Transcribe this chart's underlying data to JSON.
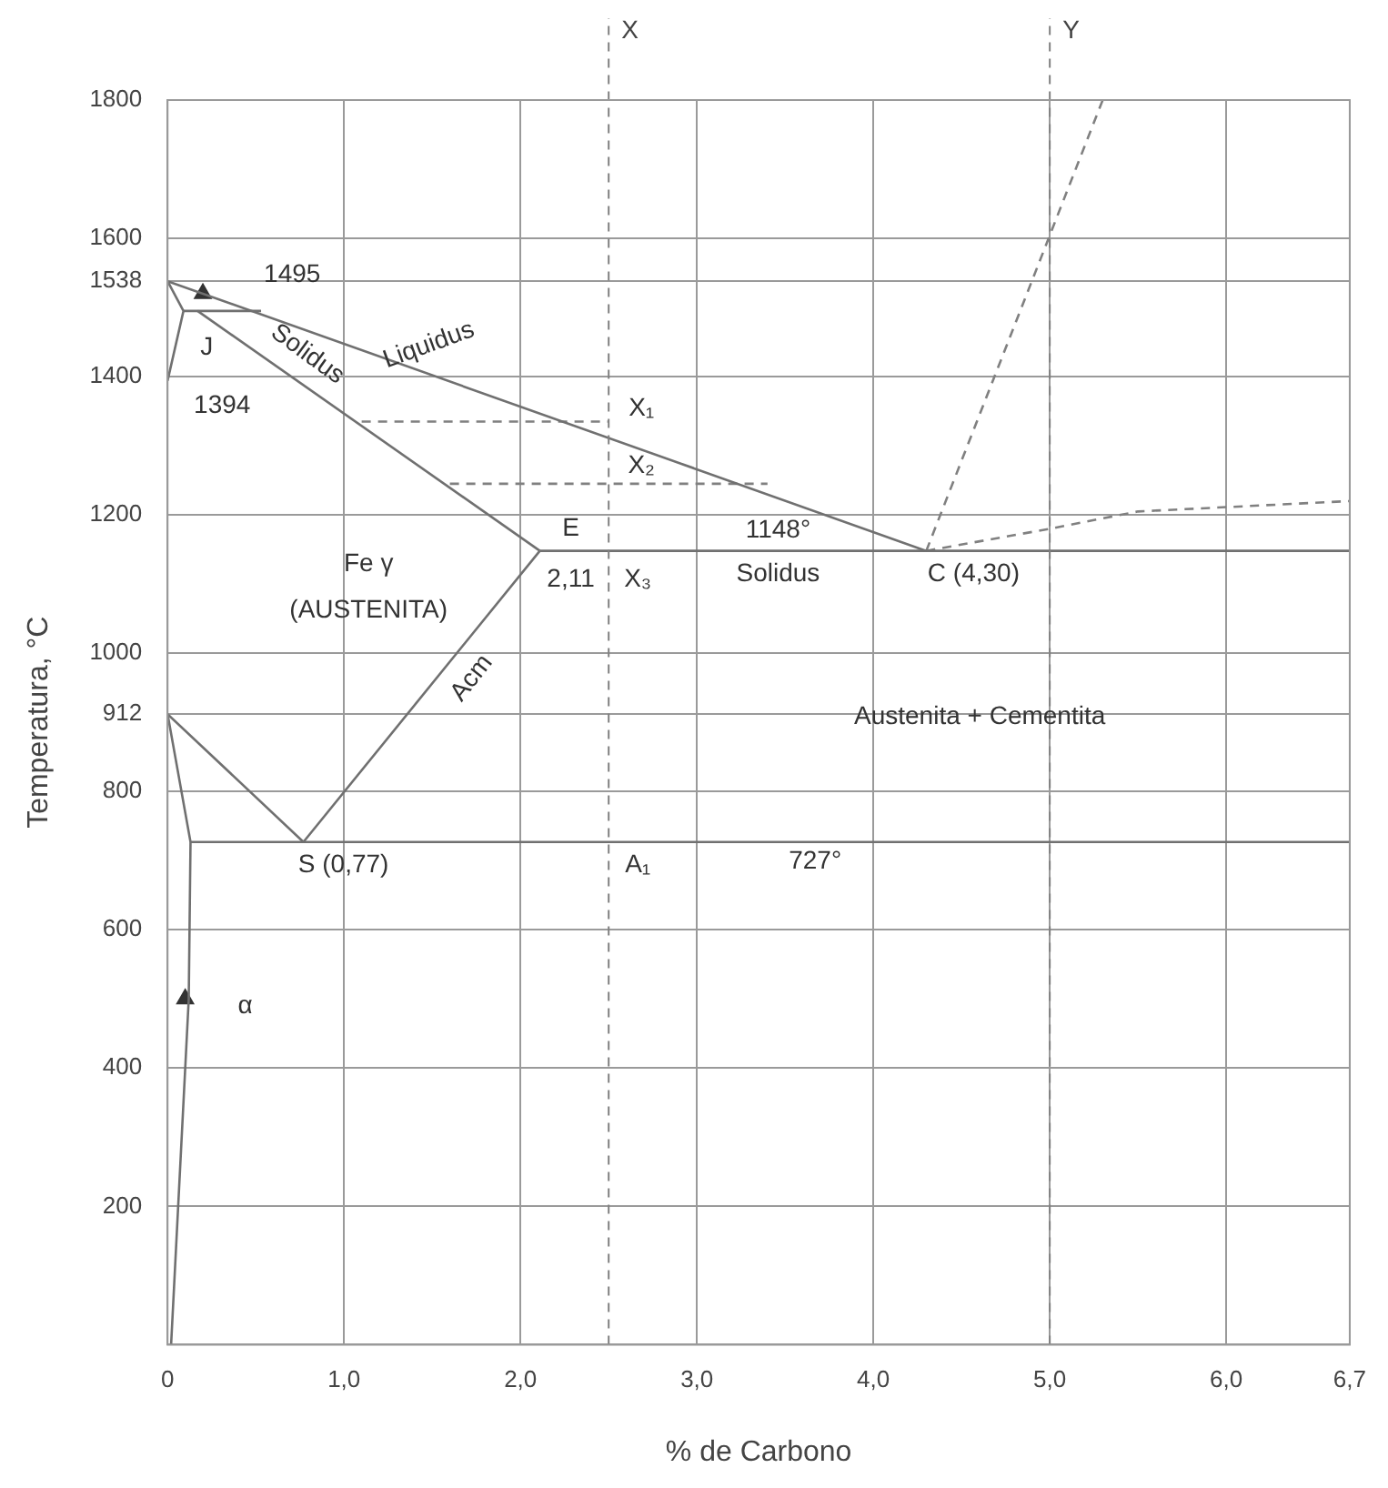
{
  "chart_data": {
    "type": "line",
    "xlabel": "% de Carbono",
    "ylabel": "Temperatura, °C",
    "xlim": [
      0,
      6.7
    ],
    "ylim": [
      0,
      1800
    ],
    "xticks": [
      0,
      {
        "value": 1,
        "label": "1,0"
      },
      {
        "value": 2,
        "label": "2,0"
      },
      {
        "value": 3,
        "label": "3,0"
      },
      {
        "value": 4,
        "label": "4,0"
      },
      {
        "value": 5,
        "label": "5,0"
      },
      {
        "value": 6,
        "label": "6,0"
      },
      {
        "value": 6.7,
        "label": "6,7"
      }
    ],
    "yticks": [
      {
        "value": 0,
        "label": null
      },
      200,
      400,
      600,
      800,
      912,
      1000,
      1200,
      1400,
      1538,
      1600,
      1800
    ],
    "grid": true,
    "legend": false,
    "marker": "none",
    "line_style": "solid",
    "series": [
      {
        "color": "#707070",
        "x": [
          0,
          4.3
        ],
        "values": [
          1538,
          1148
        ]
      },
      {
        "color": "#707070",
        "x": [
          0.17,
          2.11
        ],
        "values": [
          1495,
          1148
        ]
      },
      {
        "color": "#707070",
        "x": [
          0,
          0.09,
          0
        ],
        "values": [
          1538,
          1495,
          1394
        ]
      },
      {
        "color": "#707070",
        "x": [
          0.09,
          0.53
        ],
        "values": [
          1495,
          1495
        ]
      },
      {
        "color": "#707070",
        "x": [
          2.11,
          6.7
        ],
        "values": [
          1148,
          1148
        ]
      },
      {
        "color": "#707070",
        "x": [
          2.11,
          0.77,
          0
        ],
        "values": [
          1148,
          727,
          912
        ]
      },
      {
        "color": "#707070",
        "x": [
          0,
          0.13,
          0.12,
          0.02
        ],
        "values": [
          912,
          727,
          500,
          0
        ]
      },
      {
        "color": "#707070",
        "x": [
          0.13,
          6.7
        ],
        "values": [
          727,
          727
        ]
      },
      {
        "color": "#808080",
        "line_style": "dashed",
        "x": [
          4.3,
          5.3
        ],
        "values": [
          1148,
          1800
        ]
      },
      {
        "color": "#808080",
        "line_style": "dashed",
        "x": [
          4.3,
          5.0,
          5.5,
          6.7
        ],
        "values": [
          1148,
          1180,
          1205,
          1220
        ]
      },
      {
        "color": "#808080",
        "line_style": "dashed",
        "x": [
          1.1,
          2.5
        ],
        "values": [
          1335,
          1335
        ]
      },
      {
        "color": "#808080",
        "line_style": "dashed",
        "x": [
          1.6,
          3.4
        ],
        "values": [
          1245,
          1245
        ]
      },
      {
        "type": "scatter",
        "marker": "triangle",
        "color": "#333333",
        "x": [
          0.2,
          0.1
        ],
        "values": [
          1520,
          500
        ]
      }
    ],
    "ref_lines": [
      {
        "axis": "x",
        "value": 2.5,
        "label": "X",
        "color": "#808080",
        "line_style": "dashed"
      },
      {
        "axis": "x",
        "value": 5.0,
        "label": "Y",
        "color": "#808080",
        "line_style": "dashed"
      }
    ],
    "annotations": [
      {
        "text": "1495",
        "x": 0.17,
        "y": 1495
      },
      {
        "text": "1394",
        "x": 0,
        "y": 1394
      },
      {
        "text": "J",
        "x": 0.17,
        "y": 1495
      },
      {
        "text": "Liquidus",
        "x": 1.46,
        "y": 1406
      },
      {
        "text": "Solidus",
        "x": 0.71,
        "y": 1398
      },
      "Fe γ",
      "(AUSTENITA)",
      {
        "text": "E",
        "x": 2.11,
        "y": 1148
      },
      {
        "text": "2,11",
        "x": 2.11,
        "y": 1148
      },
      {
        "text": "X₃",
        "x": 2.5,
        "y": 1148
      },
      {
        "text": "X₁",
        "x": 2.5,
        "y": 1335
      },
      {
        "text": "X₂",
        "x": 2.5,
        "y": 1245
      },
      {
        "text": "1148°",
        "x": 3.46,
        "y": 1148
      },
      {
        "text": "Solidus",
        "x": 3.46,
        "y": 1148
      },
      {
        "text": "C (4,30)",
        "x": 4.3,
        "y": 1148
      },
      {
        "text": "Acm",
        "x": 1.59,
        "y": 985
      },
      "Austenita + Cementita",
      {
        "text": "S (0,77)",
        "x": 0.77,
        "y": 727
      },
      {
        "text": "A₁",
        "x": 2.5,
        "y": 727
      },
      {
        "text": "727°",
        "x": 3.67,
        "y": 727
      },
      {
        "text": "α",
        "x": 0.12,
        "y": 500
      }
    ]
  }
}
